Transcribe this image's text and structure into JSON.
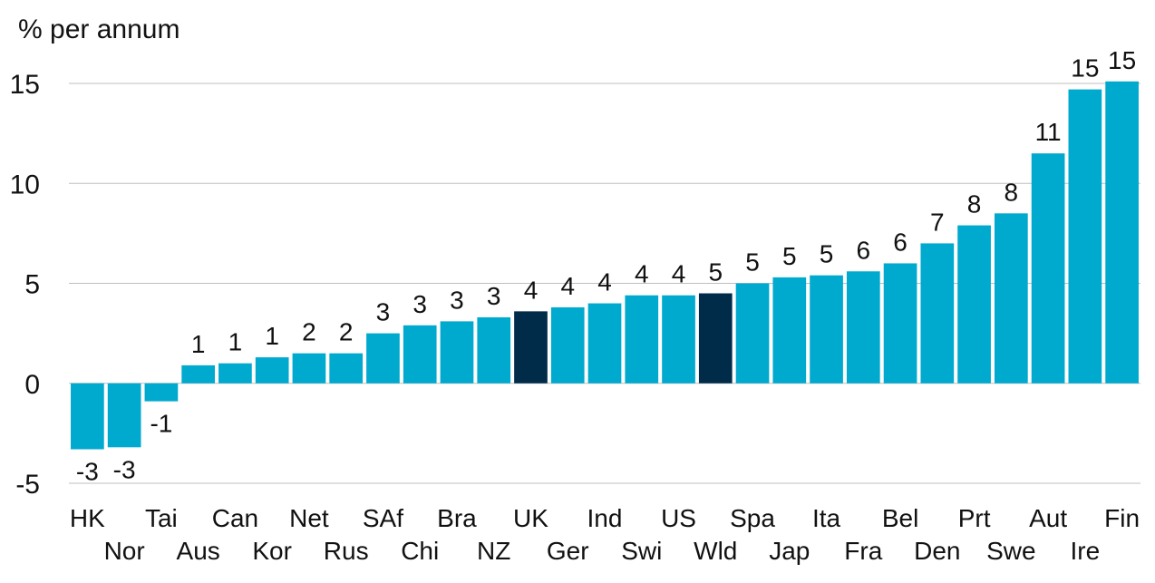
{
  "chart_data": {
    "type": "bar",
    "ylabel": "% per annum",
    "ylim": [
      -5,
      15
    ],
    "yticks": [
      -5,
      0,
      5,
      10,
      15
    ],
    "grid": true,
    "categories": [
      "HK",
      "Nor",
      "Tai",
      "Aus",
      "Can",
      "Kor",
      "Net",
      "Rus",
      "SAf",
      "Chi",
      "Bra",
      "NZ",
      "UK",
      "Ger",
      "Ind",
      "Swi",
      "US",
      "Wld",
      "Spa",
      "Jap",
      "Ita",
      "Fra",
      "Bel",
      "Den",
      "Prt",
      "Swe",
      "Aut",
      "Ire",
      "Fin"
    ],
    "values": [
      -3.3,
      -3.2,
      -0.9,
      0.9,
      1.0,
      1.3,
      1.5,
      1.5,
      2.5,
      2.9,
      3.1,
      3.3,
      3.6,
      3.8,
      4.0,
      4.4,
      4.4,
      4.5,
      5.0,
      5.3,
      5.4,
      5.6,
      6.0,
      7.0,
      7.9,
      8.5,
      11.5,
      14.7,
      15.1
    ],
    "labels": [
      "-3",
      "-3",
      "-1",
      "1",
      "1",
      "1",
      "2",
      "2",
      "3",
      "3",
      "3",
      "3",
      "4",
      "4",
      "4",
      "4",
      "4",
      "5",
      "5",
      "5",
      "5",
      "6",
      "6",
      "7",
      "8",
      "8",
      "11",
      "15",
      "15"
    ],
    "highlighted": [
      "UK",
      "Wld"
    ],
    "colors": {
      "default": "#00a9ce",
      "highlight": "#002b49"
    }
  }
}
